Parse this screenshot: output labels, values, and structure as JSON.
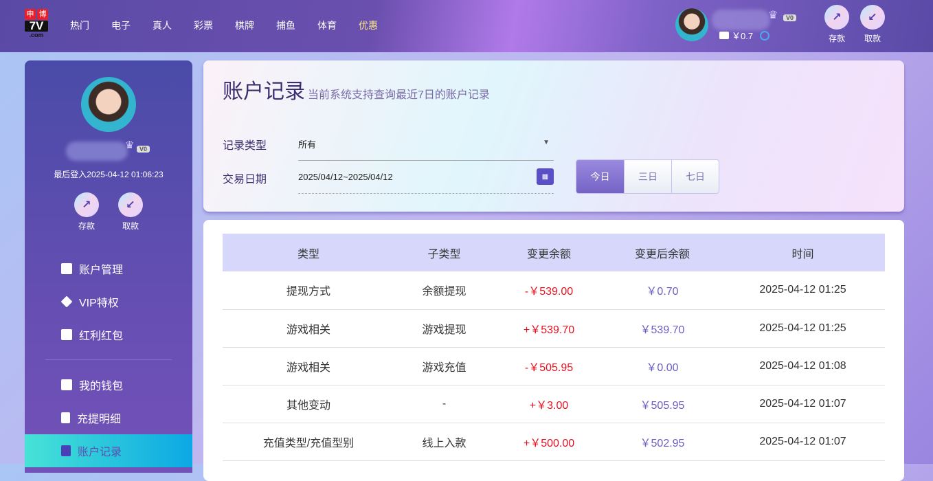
{
  "header": {
    "logo_text": "申博 7V .com",
    "nav": [
      "热门",
      "电子",
      "真人",
      "彩票",
      "棋牌",
      "捕鱼",
      "体育",
      "优惠"
    ],
    "vip": "V0",
    "balance": "￥0.7",
    "deposit": "存款",
    "withdraw": "取款"
  },
  "sidebar": {
    "vip": "V0",
    "last_login": "最后登入2025-04-12 01:06:23",
    "deposit": "存款",
    "withdraw": "取款",
    "items": [
      {
        "label": "账户管理",
        "icon": "card-icon"
      },
      {
        "label": "VIP特权",
        "icon": "diamond-icon"
      },
      {
        "label": "红利红包",
        "icon": "envelope-icon"
      },
      {
        "label": "我的钱包",
        "icon": "wallet-icon"
      },
      {
        "label": "充提明细",
        "icon": "document-icon"
      },
      {
        "label": "账户记录",
        "icon": "clipboard-icon",
        "active": true
      }
    ]
  },
  "filter": {
    "title": "账户记录",
    "subtitle": "当前系统支持查询最近7日的账户记录",
    "type_label": "记录类型",
    "type_value": "所有",
    "date_label": "交易日期",
    "date_value": "2025/04/12~2025/04/12",
    "ranges": [
      "今日",
      "三日",
      "七日"
    ],
    "active_range": "今日"
  },
  "table": {
    "headers": [
      "类型",
      "子类型",
      "变更余额",
      "变更后余额",
      "时间"
    ],
    "rows": [
      [
        "提现方式",
        "余额提现",
        "-￥539.00",
        "￥0.70",
        "2025-04-12 01:25"
      ],
      [
        "游戏相关",
        "游戏提现",
        "+￥539.70",
        "￥539.70",
        "2025-04-12 01:25"
      ],
      [
        "游戏相关",
        "游戏充值",
        "-￥505.95",
        "￥0.00",
        "2025-04-12 01:08"
      ],
      [
        "其他变动",
        "-",
        "+￥3.00",
        "￥505.95",
        "2025-04-12 01:07"
      ],
      [
        "充值类型/充值型别",
        "线上入款",
        "+￥500.00",
        "￥502.95",
        "2025-04-12 01:07"
      ]
    ]
  },
  "colors": {
    "negative": "#e8101e",
    "balance": "#6a5fc1",
    "accent": "#7463c4"
  }
}
